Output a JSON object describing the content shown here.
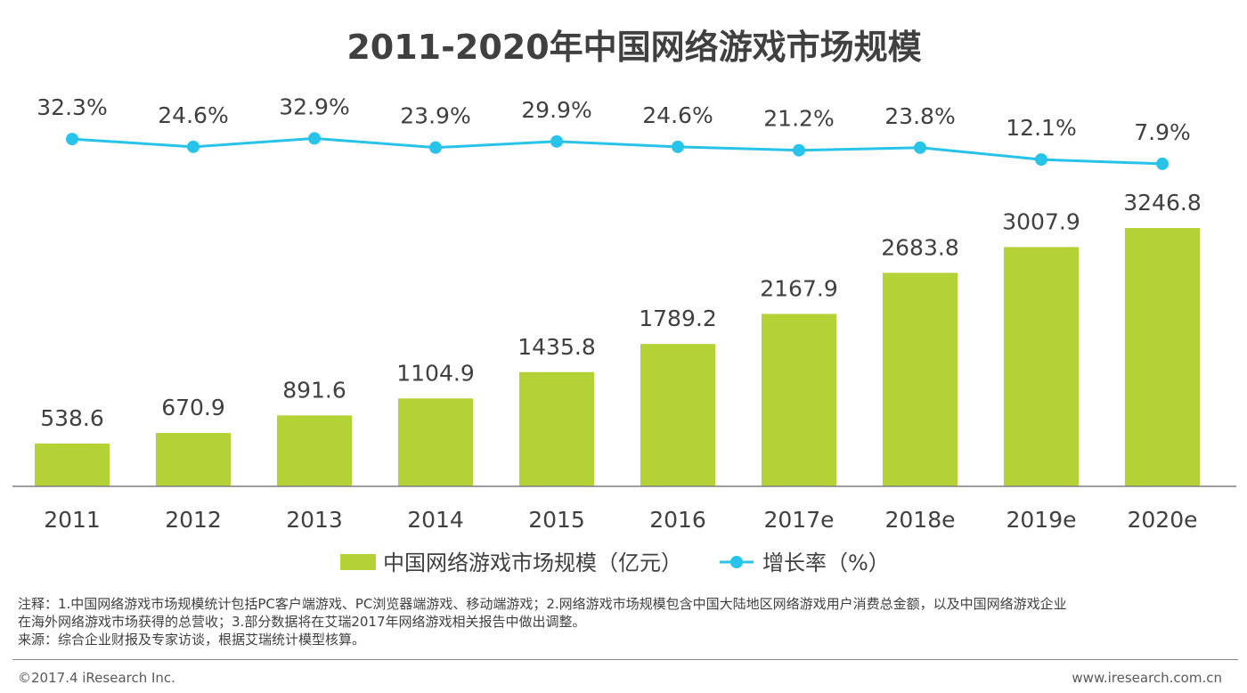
{
  "chart_data": {
    "type": "bar+line",
    "title": "2011-2020年中国网络游戏市场规模",
    "categories": [
      "2011",
      "2012",
      "2013",
      "2014",
      "2015",
      "2016",
      "2017e",
      "2018e",
      "2019e",
      "2020e"
    ],
    "series": [
      {
        "name": "中国网络游戏市场规模（亿元）",
        "kind": "bar",
        "color": "#b2d235",
        "values": [
          538.6,
          670.9,
          891.6,
          1104.9,
          1435.8,
          1789.2,
          2167.9,
          2683.8,
          3007.9,
          3246.8
        ],
        "labels": [
          "538.6",
          "670.9",
          "891.6",
          "1104.9",
          "1435.8",
          "1789.2",
          "2167.9",
          "2683.8",
          "3007.9",
          "3246.8"
        ]
      },
      {
        "name": "增长率（%）",
        "kind": "line",
        "color": "#28c3e8",
        "values": [
          32.3,
          24.6,
          32.9,
          23.9,
          29.9,
          24.6,
          21.2,
          23.8,
          12.1,
          7.9
        ],
        "labels": [
          "32.3%",
          "24.6%",
          "32.9%",
          "23.9%",
          "29.9%",
          "24.6%",
          "21.2%",
          "23.8%",
          "12.1%",
          "7.9%"
        ]
      }
    ],
    "bar_ylim": [
      0,
      3300
    ],
    "line_ylim": [
      0,
      35
    ],
    "legend_position": "bottom-center",
    "grid": false
  },
  "notes": {
    "line1": "注释：1.中国网络游戏市场规模统计包括PC客户端游戏、PC浏览器端游戏、移动端游戏；2.网络游戏市场规模包含中国大陆地区网络游戏用户消费总金额，以及中国网络游戏企业",
    "line2": "在海外网络游戏市场获得的总营收；3.部分数据将在艾瑞2017年网络游戏相关报告中做出调整。",
    "line3": "来源：综合企业财报及专家访谈，根据艾瑞统计模型核算。"
  },
  "footer": {
    "copyright": "©2017.4 iResearch Inc.",
    "website": "www.iresearch.com.cn"
  }
}
